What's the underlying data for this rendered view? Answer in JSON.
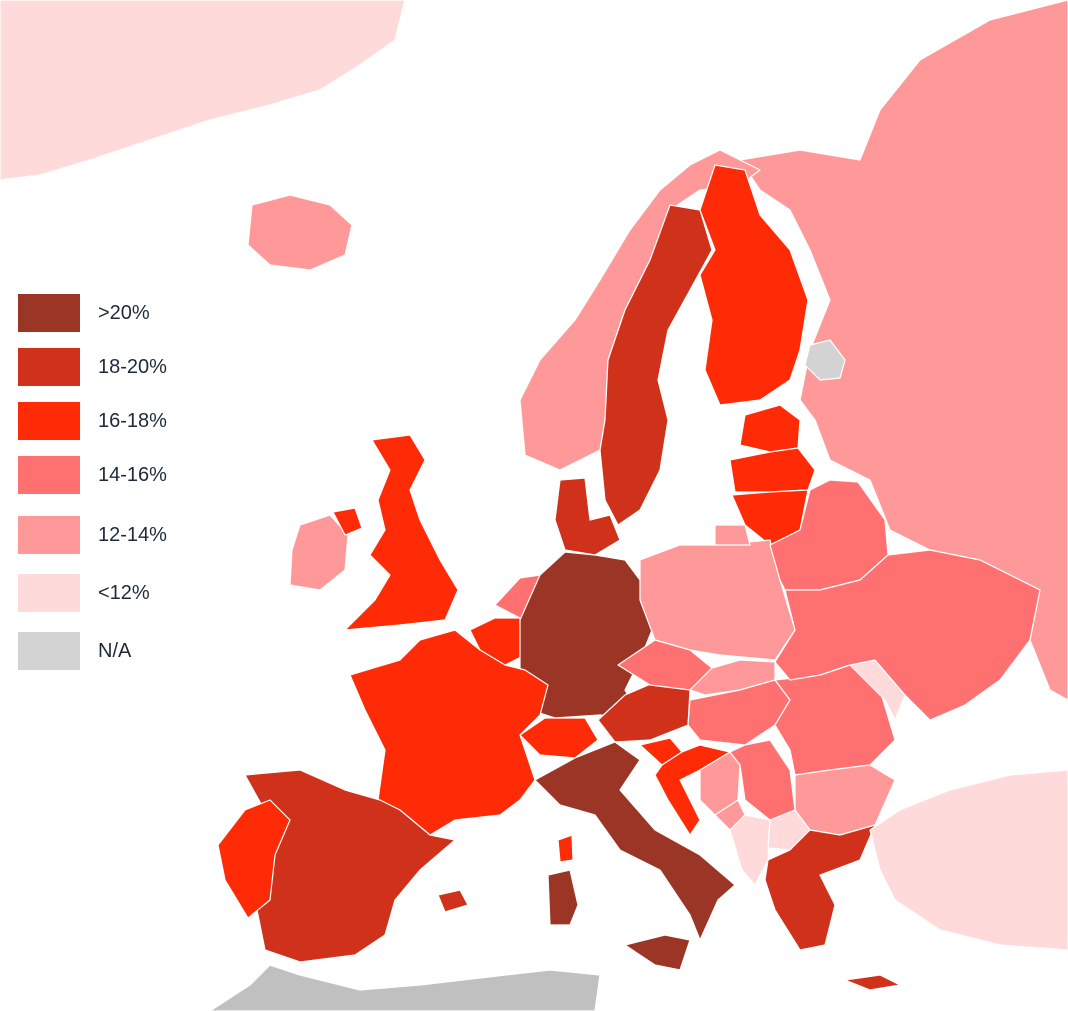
{
  "colors": {
    "gt20": "#9b3525",
    "r18_20": "#d0311b",
    "r16_18": "#ff2a06",
    "r14_16": "#ff7070",
    "r12_14": "#ff9898",
    "lt12": "#ffdada",
    "na": "#d3d3d3",
    "outside": "#c0c0c0"
  },
  "legend": [
    {
      "label": ">20%",
      "class": "gt20",
      "color": "#9b3525"
    },
    {
      "label": "18-20%",
      "class": "r18_20",
      "color": "#d0311b"
    },
    {
      "label": "16-18%",
      "class": "r16_18",
      "color": "#ff2a06"
    },
    {
      "label": "14-16%",
      "class": "r14_16",
      "color": "#ff7070"
    },
    {
      "label": "12-14%",
      "class": "r12_14",
      "color": "#ff9898"
    },
    {
      "label": "<12%",
      "class": "lt12",
      "color": "#ffdada"
    },
    {
      "label": "N/A",
      "class": "na",
      "color": "#d3d3d3"
    }
  ],
  "regions": [
    {
      "name": "greenland",
      "class": "lt12"
    },
    {
      "name": "iceland",
      "class": "r12_14"
    },
    {
      "name": "russia",
      "class": "r12_14"
    },
    {
      "name": "norway",
      "class": "r12_14"
    },
    {
      "name": "sweden",
      "class": "r18_20"
    },
    {
      "name": "finland",
      "class": "r16_18"
    },
    {
      "name": "estonia",
      "class": "r16_18"
    },
    {
      "name": "latvia",
      "class": "r16_18"
    },
    {
      "name": "lithuania",
      "class": "r16_18"
    },
    {
      "name": "denmark",
      "class": "r18_20"
    },
    {
      "name": "ireland",
      "class": "r12_14"
    },
    {
      "name": "northern-ireland",
      "class": "r16_18"
    },
    {
      "name": "united-kingdom",
      "class": "r16_18"
    },
    {
      "name": "netherlands",
      "class": "r14_16"
    },
    {
      "name": "belgium",
      "class": "r16_18"
    },
    {
      "name": "germany",
      "class": "gt20"
    },
    {
      "name": "france",
      "class": "r16_18"
    },
    {
      "name": "switzerland",
      "class": "r16_18"
    },
    {
      "name": "austria",
      "class": "r18_20"
    },
    {
      "name": "italy",
      "class": "gt20"
    },
    {
      "name": "sardinia",
      "class": "gt20"
    },
    {
      "name": "corsica",
      "class": "r16_18"
    },
    {
      "name": "spain",
      "class": "r18_20"
    },
    {
      "name": "balearic",
      "class": "r18_20"
    },
    {
      "name": "portugal",
      "class": "r16_18"
    },
    {
      "name": "poland",
      "class": "r12_14"
    },
    {
      "name": "czech-republic",
      "class": "r14_16"
    },
    {
      "name": "slovakia",
      "class": "r12_14"
    },
    {
      "name": "hungary",
      "class": "r14_16"
    },
    {
      "name": "slovenia",
      "class": "r16_18"
    },
    {
      "name": "croatia",
      "class": "r16_18"
    },
    {
      "name": "bosnia",
      "class": "r12_14"
    },
    {
      "name": "serbia",
      "class": "r14_16"
    },
    {
      "name": "montenegro",
      "class": "r12_14"
    },
    {
      "name": "kosovo-albania",
      "class": "lt12"
    },
    {
      "name": "north-macedonia",
      "class": "lt12"
    },
    {
      "name": "romania",
      "class": "r14_16"
    },
    {
      "name": "moldova",
      "class": "lt12"
    },
    {
      "name": "bulgaria",
      "class": "r12_14"
    },
    {
      "name": "greece",
      "class": "r18_20"
    },
    {
      "name": "crete",
      "class": "r18_20"
    },
    {
      "name": "belarus",
      "class": "r14_16"
    },
    {
      "name": "ukraine",
      "class": "r14_16"
    },
    {
      "name": "turkey",
      "class": "lt12"
    },
    {
      "name": "kaliningrad",
      "class": "r12_14"
    },
    {
      "name": "north-africa",
      "class": "outside"
    },
    {
      "name": "lake-region-na",
      "class": "na"
    }
  ]
}
